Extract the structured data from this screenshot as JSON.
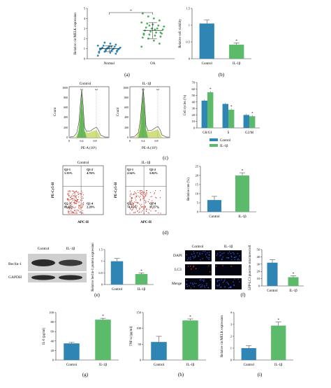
{
  "panel_labels": {
    "a": "(a)",
    "b": "(b)",
    "c": "(c)",
    "d": "(d)",
    "e": "(e)",
    "f": "(f)",
    "g": "(g)",
    "h": "(h)",
    "i": "(i)"
  },
  "sig_mark": "*",
  "colors": {
    "control": "#2f86b4",
    "il1b": "#5cba6b",
    "normal_dot": "#2f86b4",
    "oa_dot": "#49b059",
    "flow_red": "#d23a2a"
  },
  "chart_data": [
    {
      "id": "a",
      "type": "scatter",
      "ylabel": "Relative circMELK expression",
      "categories": [
        "Normal",
        "OA"
      ],
      "ylim": [
        0,
        5
      ],
      "yticks": [
        0,
        1,
        2,
        3,
        4,
        5
      ],
      "series": [
        {
          "name": "Normal",
          "values": [
            0.3,
            0.5,
            0.6,
            0.7,
            0.7,
            0.8,
            0.8,
            0.8,
            0.9,
            0.9,
            0.9,
            1.0,
            1.0,
            1.0,
            1.0,
            1.1,
            1.1,
            1.1,
            1.2,
            1.2,
            1.3,
            1.3,
            1.4,
            1.5,
            1.6,
            0.6,
            0.7,
            1.2,
            0.9,
            1.0
          ]
        },
        {
          "name": "OA",
          "values": [
            1.2,
            1.5,
            1.8,
            2.0,
            2.1,
            2.2,
            2.3,
            2.4,
            2.5,
            2.5,
            2.6,
            2.7,
            2.8,
            2.9,
            3.0,
            3.0,
            3.1,
            3.2,
            3.3,
            3.4,
            3.5,
            3.6,
            3.8,
            4.0,
            4.2,
            4.5,
            2.6,
            2.9,
            3.3,
            2.4
          ]
        }
      ],
      "mean": [
        1.0,
        2.8
      ],
      "sd": [
        0.3,
        0.8
      ]
    },
    {
      "id": "b",
      "type": "bar",
      "ylabel": "Relative cell viability",
      "categories": [
        "Control",
        "IL-1β"
      ],
      "values": [
        1.05,
        0.42
      ],
      "errors": [
        0.1,
        0.05
      ],
      "ylim": [
        0,
        1.5
      ],
      "yticks": [
        0,
        0.5,
        1.0,
        1.5
      ]
    },
    {
      "id": "c3",
      "type": "bar",
      "ylabel": "Cell cycles (%)",
      "categories": [
        "G0/G1",
        "S",
        "G2/M"
      ],
      "series": [
        {
          "name": "Control",
          "values": [
            42,
            37,
            20
          ]
        },
        {
          "name": "IL-1β",
          "values": [
            55,
            28,
            18
          ]
        }
      ],
      "ylim": [
        0,
        70
      ],
      "yticks": [
        0,
        10,
        20,
        30,
        40,
        50,
        60,
        70
      ]
    },
    {
      "id": "d3",
      "type": "bar",
      "ylabel": "Relative rate (%)",
      "categories": [
        "Control",
        "IL-1β"
      ],
      "values": [
        6.5,
        20
      ],
      "errors": [
        2.0,
        1.5
      ],
      "ylim": [
        0,
        25
      ],
      "yticks": [
        0,
        5,
        10,
        15,
        20,
        25
      ]
    },
    {
      "id": "e2",
      "type": "bar",
      "ylabel": "Relative beclin-1 protein expression",
      "categories": [
        "Control",
        "IL-1β"
      ],
      "values": [
        1.0,
        0.45
      ],
      "errors": [
        0.12,
        0.05
      ],
      "ylim": [
        0,
        1.5
      ],
      "yticks": [
        0,
        0.5,
        1.0,
        1.5
      ]
    },
    {
      "id": "f2",
      "type": "bar",
      "ylabel": "GFP-LC3 punctate structures/cell",
      "categories": [
        "Control",
        "IL-1β"
      ],
      "values": [
        32,
        12
      ],
      "errors": [
        4,
        2
      ],
      "ylim": [
        0,
        50
      ],
      "yticks": [
        0,
        10,
        20,
        30,
        40,
        50
      ]
    },
    {
      "id": "g",
      "type": "bar",
      "ylabel": "IL-6 (pg/ml)",
      "categories": [
        "Control",
        "IL-1β"
      ],
      "values": [
        35,
        85
      ],
      "errors": [
        2,
        3
      ],
      "ylim": [
        0,
        100
      ],
      "yticks": [
        0,
        20,
        40,
        60,
        80,
        100
      ]
    },
    {
      "id": "h",
      "type": "bar",
      "ylabel": "TNF-α (pg/ml)",
      "categories": [
        "Control",
        "IL-1β"
      ],
      "values": [
        57,
        125
      ],
      "errors": [
        18,
        5
      ],
      "ylim": [
        0,
        150
      ],
      "yticks": [
        0,
        50,
        100,
        150
      ]
    },
    {
      "id": "i",
      "type": "bar",
      "ylabel": "Relative circMELK expression",
      "categories": [
        "Control",
        "IL-1β"
      ],
      "values": [
        1.0,
        2.9
      ],
      "errors": [
        0.2,
        0.3
      ],
      "ylim": [
        0,
        4
      ],
      "yticks": [
        0,
        1,
        2,
        3,
        4
      ]
    }
  ],
  "flow_cycle": {
    "panels": [
      "Control",
      "IL-1β"
    ],
    "ylabel": "Count",
    "xlabel": "PE-A (10³)",
    "yticks": [
      "0",
      "200",
      "400",
      "600",
      "800",
      "1000"
    ],
    "xticks": [
      "0",
      "0.4",
      "0.8"
    ],
    "gate_labels": [
      "G1",
      "G2"
    ]
  },
  "flow_apoptosis": {
    "panels": [
      {
        "title": "Control",
        "q1": "Q2-1\n1.33%",
        "q2": "Q2-2\n4.76%",
        "q3": "Q2-3\n89.63%",
        "q4": "Q2-4\n2.28%"
      },
      {
        "title": "IL-1β",
        "q1": "Q2-1\n2.54%",
        "q2": "Q2-2\n5.82%",
        "q3": "Q2-3\n74.47%",
        "q4": "Q2-4\n17.17%"
      }
    ],
    "ylabel": "PE-Cy5-H",
    "xlabel": "APC-H"
  },
  "western": {
    "lanes": [
      "Control",
      "IL-1β"
    ],
    "rows": [
      "Beclin-1",
      "GAPDH"
    ]
  },
  "fluor": {
    "cols": [
      "Control",
      "IL-1β"
    ],
    "rows": [
      "DAPI",
      "LC3",
      "Merge"
    ]
  },
  "legend": {
    "control": "Control",
    "il1b": "IL-1β"
  }
}
